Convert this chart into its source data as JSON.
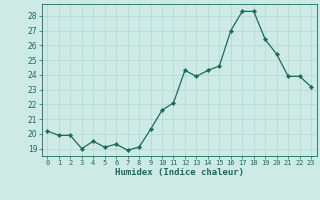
{
  "x": [
    0,
    1,
    2,
    3,
    4,
    5,
    6,
    7,
    8,
    9,
    10,
    11,
    12,
    13,
    14,
    15,
    16,
    17,
    18,
    19,
    20,
    21,
    22,
    23
  ],
  "y": [
    20.2,
    19.9,
    19.9,
    19.0,
    19.5,
    19.1,
    19.3,
    18.9,
    19.1,
    20.3,
    21.6,
    22.1,
    24.3,
    23.9,
    24.3,
    24.6,
    27.0,
    28.3,
    28.3,
    26.4,
    25.4,
    23.9,
    23.9,
    23.2
  ],
  "line_color": "#1a6b5a",
  "marker": "D",
  "marker_size": 2.2,
  "bg_color": "#cdeae5",
  "grid_color": "#b0d8d2",
  "xlabel": "Humidex (Indice chaleur)",
  "ylabel_ticks": [
    19,
    20,
    21,
    22,
    23,
    24,
    25,
    26,
    27,
    28
  ],
  "xlim": [
    -0.5,
    23.5
  ],
  "ylim": [
    18.5,
    28.8
  ],
  "xtick_fontsize": 5.0,
  "ytick_fontsize": 5.5,
  "xlabel_fontsize": 6.5
}
